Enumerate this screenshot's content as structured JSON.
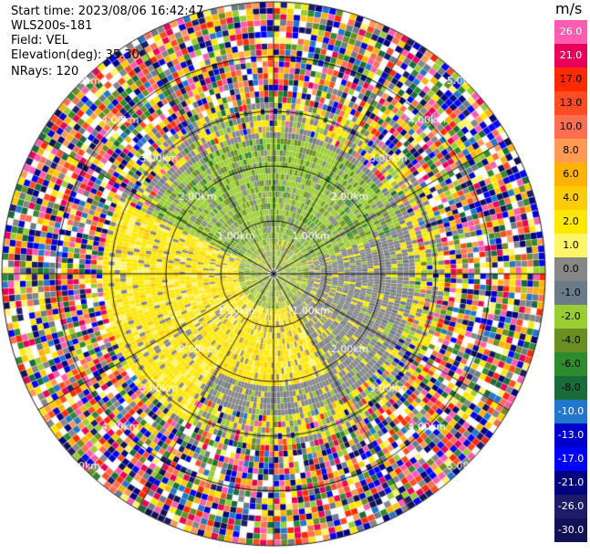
{
  "header": {
    "start_time_label": "Start time:",
    "start_time": "2023/08/06 16:42:47",
    "instrument": "WLS200s-181",
    "field_label": "Field:",
    "field": "VEL",
    "elevation_label": "Elevation(deg):",
    "elevation": "35.30",
    "nrays_label": "NRays:",
    "nrays": "120"
  },
  "colorbar": {
    "unit": "m/s",
    "bins": [
      {
        "label": "26.0",
        "color": "#ff5bb0"
      },
      {
        "label": "21.0",
        "color": "#e8005a"
      },
      {
        "label": "17.0",
        "color": "#ff2a00"
      },
      {
        "label": "13.0",
        "color": "#ff4c22"
      },
      {
        "label": "10.0",
        "color": "#ff6e50"
      },
      {
        "label": "8.0",
        "color": "#ff9a55"
      },
      {
        "label": "6.0",
        "color": "#ffb300"
      },
      {
        "label": "4.0",
        "color": "#ffcc00"
      },
      {
        "label": "2.0",
        "color": "#ffe800"
      },
      {
        "label": "1.0",
        "color": "#fff56a"
      },
      {
        "label": "0.0",
        "color": "#878787"
      },
      {
        "label": "-1.0",
        "color": "#6b7b88"
      },
      {
        "label": "-2.0",
        "color": "#9acd32"
      },
      {
        "label": "-4.0",
        "color": "#6b8e23"
      },
      {
        "label": "-6.0",
        "color": "#2e8b2e"
      },
      {
        "label": "-8.0",
        "color": "#1a6b3a"
      },
      {
        "label": "-10.0",
        "color": "#2277cc"
      },
      {
        "label": "-13.0",
        "color": "#0000cc"
      },
      {
        "label": "-17.0",
        "color": "#0000ff"
      },
      {
        "label": "-21.0",
        "color": "#000080"
      },
      {
        "label": "-26.0",
        "color": "#1c1c6b"
      },
      {
        "label": "-30.0",
        "color": "#111155"
      }
    ]
  },
  "chart_data": {
    "type": "heatmap",
    "projection": "ppi-polar",
    "field": "VEL",
    "units": "m/s",
    "range_rings_km": [
      1.0,
      2.0,
      3.0,
      4.0,
      5.0
    ],
    "ring_labels": [
      "1.00km",
      "2.00km",
      "3.00km",
      "4.00km",
      "5.00km"
    ],
    "n_rays": 120,
    "vmin": -30.0,
    "vmax": 30.0,
    "grid": true
  }
}
